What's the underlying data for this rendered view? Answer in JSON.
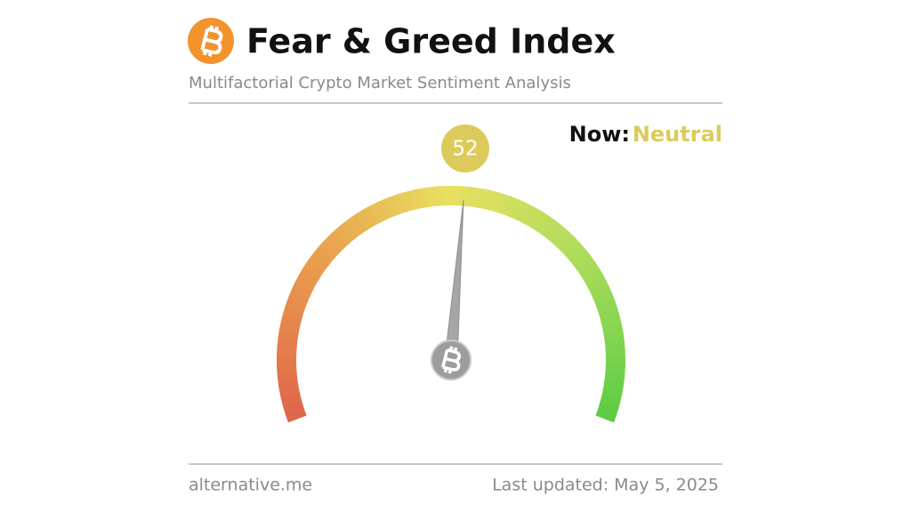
{
  "chart_data": {
    "type": "gauge",
    "title": "Fear & Greed Index",
    "subtitle": "Multifactorial Crypto Market Sentiment Analysis",
    "now_label": "Now:",
    "classification": "Neutral",
    "value": 52,
    "ylim": [
      0,
      100
    ],
    "source": "alternative.me",
    "updated": "Last updated: May 5, 2025"
  }
}
